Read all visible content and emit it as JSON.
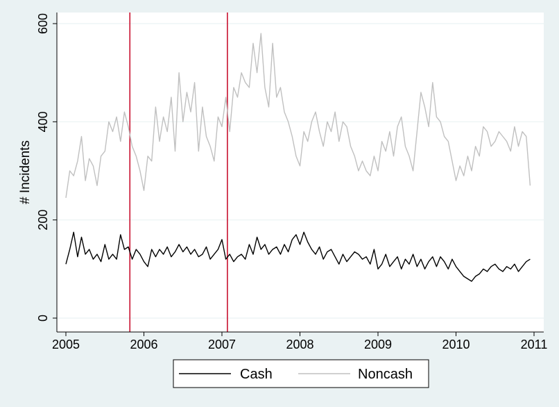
{
  "chart_data": {
    "type": "line",
    "title": "",
    "xlabel": "",
    "ylabel": "# Incidents",
    "xlim": [
      2005,
      2011
    ],
    "ylim": [
      0,
      600
    ],
    "x_ticks": [
      2005,
      2006,
      2007,
      2008,
      2009,
      2010,
      2011
    ],
    "y_ticks": [
      0,
      200,
      400,
      600
    ],
    "grid": "horizontal",
    "legend": "bottom",
    "vertical_reference_lines": [
      2005.82,
      2007.07
    ],
    "series": [
      {
        "name": "Cash",
        "color": "#000000",
        "x": [
          2005.0,
          2005.05,
          2005.1,
          2005.15,
          2005.2,
          2005.25,
          2005.3,
          2005.35,
          2005.4,
          2005.45,
          2005.5,
          2005.55,
          2005.6,
          2005.65,
          2005.7,
          2005.75,
          2005.8,
          2005.85,
          2005.9,
          2005.95,
          2006.0,
          2006.05,
          2006.1,
          2006.15,
          2006.2,
          2006.25,
          2006.3,
          2006.35,
          2006.4,
          2006.45,
          2006.5,
          2006.55,
          2006.6,
          2006.65,
          2006.7,
          2006.75,
          2006.8,
          2006.85,
          2006.9,
          2006.95,
          2007.0,
          2007.05,
          2007.1,
          2007.15,
          2007.2,
          2007.25,
          2007.3,
          2007.35,
          2007.4,
          2007.45,
          2007.5,
          2007.55,
          2007.6,
          2007.65,
          2007.7,
          2007.75,
          2007.8,
          2007.85,
          2007.9,
          2007.95,
          2008.0,
          2008.05,
          2008.1,
          2008.15,
          2008.2,
          2008.25,
          2008.3,
          2008.35,
          2008.4,
          2008.45,
          2008.5,
          2008.55,
          2008.6,
          2008.65,
          2008.7,
          2008.75,
          2008.8,
          2008.85,
          2008.9,
          2008.95,
          2009.0,
          2009.05,
          2009.1,
          2009.15,
          2009.2,
          2009.25,
          2009.3,
          2009.35,
          2009.4,
          2009.45,
          2009.5,
          2009.55,
          2009.6,
          2009.65,
          2009.7,
          2009.75,
          2009.8,
          2009.85,
          2009.9,
          2009.95,
          2010.0,
          2010.05,
          2010.1,
          2010.15,
          2010.2,
          2010.25,
          2010.3,
          2010.35,
          2010.4,
          2010.45,
          2010.5,
          2010.55,
          2010.6,
          2010.65,
          2010.7,
          2010.75,
          2010.8,
          2010.85,
          2010.9,
          2010.95
        ],
        "values": [
          110,
          140,
          175,
          125,
          165,
          130,
          140,
          120,
          130,
          115,
          150,
          120,
          130,
          120,
          170,
          140,
          145,
          120,
          140,
          130,
          115,
          105,
          140,
          125,
          140,
          130,
          145,
          125,
          135,
          150,
          135,
          145,
          130,
          140,
          125,
          130,
          145,
          120,
          130,
          140,
          160,
          120,
          130,
          115,
          125,
          130,
          120,
          150,
          130,
          165,
          140,
          150,
          130,
          140,
          145,
          130,
          150,
          135,
          160,
          170,
          150,
          175,
          155,
          140,
          130,
          145,
          120,
          135,
          140,
          125,
          110,
          130,
          115,
          125,
          135,
          130,
          120,
          125,
          110,
          140,
          100,
          110,
          130,
          105,
          115,
          125,
          100,
          120,
          110,
          130,
          105,
          120,
          100,
          115,
          125,
          105,
          125,
          115,
          100,
          120,
          105,
          95,
          85,
          80,
          75,
          85,
          90,
          100,
          95,
          105,
          110,
          100,
          95,
          105,
          100,
          110,
          95,
          105,
          115,
          120
        ]
      },
      {
        "name": "Noncash",
        "color": "#c0c0c0",
        "x": [
          2005.0,
          2005.05,
          2005.1,
          2005.15,
          2005.2,
          2005.25,
          2005.3,
          2005.35,
          2005.4,
          2005.45,
          2005.5,
          2005.55,
          2005.6,
          2005.65,
          2005.7,
          2005.75,
          2005.8,
          2005.85,
          2005.9,
          2005.95,
          2006.0,
          2006.05,
          2006.1,
          2006.15,
          2006.2,
          2006.25,
          2006.3,
          2006.35,
          2006.4,
          2006.45,
          2006.5,
          2006.55,
          2006.6,
          2006.65,
          2006.7,
          2006.75,
          2006.8,
          2006.85,
          2006.9,
          2006.95,
          2007.0,
          2007.05,
          2007.1,
          2007.15,
          2007.2,
          2007.25,
          2007.3,
          2007.35,
          2007.4,
          2007.45,
          2007.5,
          2007.55,
          2007.6,
          2007.65,
          2007.7,
          2007.75,
          2007.8,
          2007.85,
          2007.9,
          2007.95,
          2008.0,
          2008.05,
          2008.1,
          2008.15,
          2008.2,
          2008.25,
          2008.3,
          2008.35,
          2008.4,
          2008.45,
          2008.5,
          2008.55,
          2008.6,
          2008.65,
          2008.7,
          2008.75,
          2008.8,
          2008.85,
          2008.9,
          2008.95,
          2009.0,
          2009.05,
          2009.1,
          2009.15,
          2009.2,
          2009.25,
          2009.3,
          2009.35,
          2009.4,
          2009.45,
          2009.5,
          2009.55,
          2009.6,
          2009.65,
          2009.7,
          2009.75,
          2009.8,
          2009.85,
          2009.9,
          2009.95,
          2010.0,
          2010.05,
          2010.1,
          2010.15,
          2010.2,
          2010.25,
          2010.3,
          2010.35,
          2010.4,
          2010.45,
          2010.5,
          2010.55,
          2010.6,
          2010.65,
          2010.7,
          2010.75,
          2010.8,
          2010.85,
          2010.9,
          2010.95
        ],
        "values": [
          245,
          300,
          290,
          320,
          370,
          280,
          325,
          310,
          270,
          330,
          340,
          400,
          380,
          410,
          360,
          420,
          390,
          350,
          330,
          300,
          260,
          330,
          320,
          430,
          360,
          410,
          380,
          450,
          340,
          500,
          400,
          460,
          420,
          480,
          340,
          430,
          370,
          350,
          320,
          410,
          390,
          450,
          380,
          470,
          450,
          500,
          480,
          470,
          560,
          500,
          580,
          470,
          430,
          560,
          450,
          470,
          420,
          400,
          370,
          330,
          310,
          380,
          360,
          400,
          420,
          380,
          350,
          400,
          380,
          420,
          360,
          400,
          390,
          350,
          330,
          300,
          320,
          300,
          290,
          330,
          300,
          360,
          340,
          380,
          330,
          390,
          410,
          350,
          330,
          300,
          380,
          460,
          430,
          390,
          480,
          410,
          400,
          370,
          360,
          320,
          280,
          310,
          290,
          330,
          300,
          350,
          330,
          390,
          380,
          350,
          360,
          380,
          370,
          360,
          340,
          390,
          350,
          380,
          370,
          270
        ]
      }
    ]
  }
}
